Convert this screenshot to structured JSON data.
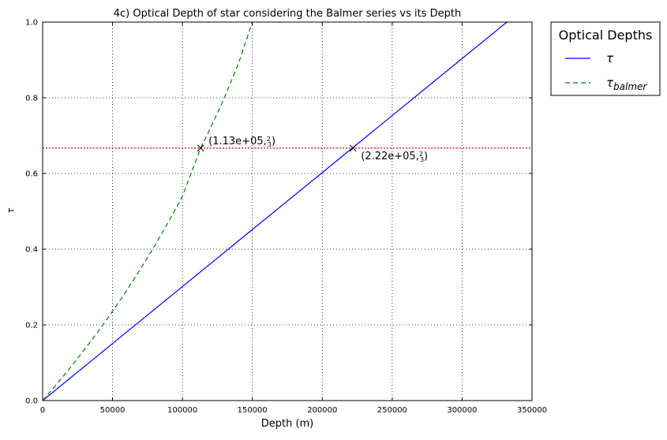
{
  "chart_data": {
    "type": "line",
    "title": "4c) Optical Depth of star considering the Balmer series vs its Depth",
    "xlabel": "Depth (m)",
    "ylabel": "τ",
    "xlim": [
      0,
      350000
    ],
    "ylim": [
      0,
      1.0
    ],
    "xticks": [
      0,
      50000,
      100000,
      150000,
      200000,
      250000,
      300000,
      350000
    ],
    "xtick_labels": [
      "0",
      "50000",
      "100000",
      "150000",
      "200000",
      "250000",
      "300000",
      "350000"
    ],
    "yticks": [
      0.0,
      0.2,
      0.4,
      0.6,
      0.8,
      1.0
    ],
    "ytick_labels": [
      "0.0",
      "0.2",
      "0.4",
      "0.6",
      "0.8",
      "1.0"
    ],
    "grid": true,
    "legend": {
      "title": "Optical Depths",
      "placement": "outside-top-right",
      "entries": [
        {
          "label_base": "τ",
          "label_sub": "",
          "color": "#0000ff",
          "dash": "solid"
        },
        {
          "label_base": "τ",
          "label_sub": "balmer",
          "color": "#008000",
          "dash": "dashed"
        }
      ]
    },
    "series": [
      {
        "name": "τ",
        "color": "#0000ff",
        "dash": "solid",
        "x": [
          0,
          50000,
          100000,
          150000,
          200000,
          250000,
          300000,
          332000
        ],
        "y": [
          0,
          0.1506,
          0.3012,
          0.4518,
          0.6024,
          0.753,
          0.9036,
          1.0
        ]
      },
      {
        "name": "τbalmer",
        "color": "#008000",
        "dash": "dashed",
        "x": [
          0,
          10000,
          20000,
          30000,
          40000,
          50000,
          60000,
          70000,
          80000,
          90000,
          100000,
          113000,
          120000,
          130000,
          140000,
          150000
        ],
        "y": [
          0,
          0.043,
          0.088,
          0.135,
          0.184,
          0.236,
          0.29,
          0.348,
          0.408,
          0.472,
          0.54,
          0.667,
          0.72,
          0.8,
          0.89,
          1.0
        ]
      }
    ],
    "reference_lines": [
      {
        "type": "horizontal",
        "y": 0.667,
        "color": "#ff0000",
        "dash": "dotted"
      }
    ],
    "markers": [
      {
        "x": 113000,
        "y": 0.667,
        "symbol": "x",
        "label_main": "(1.13e+05,",
        "label_num": "2",
        "label_den": "3",
        "label_close": ")",
        "label_pos": "above-right"
      },
      {
        "x": 222000,
        "y": 0.667,
        "symbol": "x",
        "label_main": "(2.22e+05,",
        "label_num": "2",
        "label_den": "3",
        "label_close": ")",
        "label_pos": "below-right"
      }
    ]
  }
}
